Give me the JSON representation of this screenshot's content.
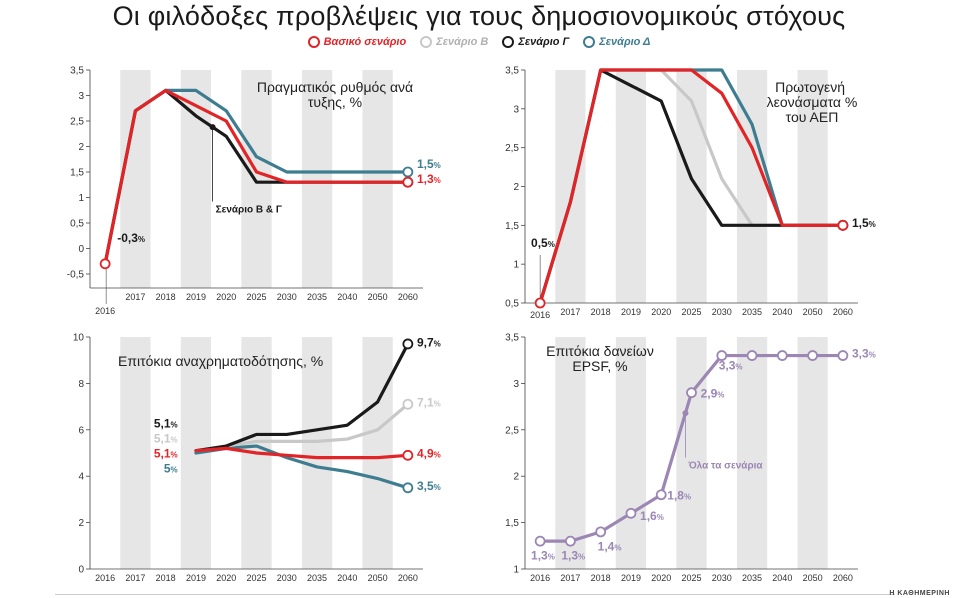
{
  "title": "Οι φιλόδοξες προβλέψεις για τους δημοσιονομικούς στόχους",
  "credit": "Η ΚΑΘΗΜΕΡΙΝΗ",
  "colors": {
    "base": "#e32427",
    "b": "#c8c8c8",
    "g": "#1a1a1a",
    "d": "#3e7c90",
    "all": "#9b86b4",
    "band": "#e6e6e6"
  },
  "legend": [
    {
      "name": "Βασικό σενάριο",
      "color": "#e32427"
    },
    {
      "name": "Σενάριο Β",
      "color": "#c8c8c8"
    },
    {
      "name": "Σενάριο Γ",
      "color": "#1a1a1a"
    },
    {
      "name": "Σενάριο Δ",
      "color": "#3e7c90"
    }
  ],
  "chart_data": [
    {
      "type": "line",
      "title": "Πραγματικός ρυθμός ανάπτυξης, %",
      "categories": [
        "2016",
        "2017",
        "2018",
        "2019",
        "2020",
        "2025",
        "2030",
        "2035",
        "2040",
        "2050",
        "2060"
      ],
      "ylim": [
        -0.5,
        3.5
      ],
      "yticks": [
        "-0,5",
        "0",
        "0,5",
        "1",
        "1,5",
        "2",
        "2,5",
        "3",
        "3,5"
      ],
      "series": [
        {
          "name": "Σενάριο Δ",
          "values": [
            -0.3,
            2.7,
            3.1,
            3.1,
            2.7,
            1.8,
            1.5,
            1.5,
            1.5,
            1.5,
            1.5
          ]
        },
        {
          "name": "Σενάριο Γ",
          "values": [
            -0.3,
            2.7,
            3.1,
            2.6,
            2.2,
            1.3,
            1.3,
            1.3,
            1.3,
            1.3,
            1.3
          ]
        },
        {
          "name": "Βασικό σενάριο",
          "values": [
            -0.3,
            2.7,
            3.1,
            2.8,
            2.5,
            1.5,
            1.3,
            1.3,
            1.3,
            1.3,
            1.3
          ]
        }
      ],
      "labels": [
        {
          "text": "-0,3",
          "unit": "%",
          "x": 0.4,
          "y": 0.13,
          "color": "#1a1a1a"
        },
        {
          "text": "1,5",
          "unit": "%",
          "x": 10.3,
          "y": 1.58,
          "color": "#3e7c90"
        },
        {
          "text": "1,3",
          "unit": "%",
          "x": 10.3,
          "y": 1.28,
          "color": "#e32427"
        }
      ],
      "annotation": {
        "text": "Σενάριο Β & Γ",
        "x": 3.55,
        "y": 2.38,
        "ty": 0.92
      }
    },
    {
      "type": "line",
      "title": "Πρωτογενή πλεονάσματα % του ΑΕΠ",
      "categories": [
        "2016",
        "2017",
        "2018",
        "2019",
        "2020",
        "2025",
        "2030",
        "2035",
        "2040",
        "2050",
        "2060"
      ],
      "ylim": [
        0.5,
        3.5
      ],
      "yticks": [
        "0,5",
        "1",
        "1,5",
        "2",
        "2,5",
        "3",
        "3,5"
      ],
      "series": [
        {
          "name": "Σενάριο Β",
          "values": [
            0.5,
            1.8,
            3.5,
            3.5,
            3.5,
            3.1,
            2.1,
            1.5,
            1.5,
            1.5,
            1.5
          ]
        },
        {
          "name": "Σενάριο Γ",
          "values": [
            0.5,
            1.8,
            3.5,
            3.3,
            3.1,
            2.1,
            1.5,
            1.5,
            1.5,
            1.5,
            1.5
          ]
        },
        {
          "name": "Σενάριο Δ",
          "values": [
            0.5,
            1.8,
            3.5,
            3.5,
            3.5,
            3.5,
            3.5,
            2.8,
            1.5,
            1.5,
            1.5
          ]
        },
        {
          "name": "Βασικό σενάριο",
          "values": [
            0.5,
            1.8,
            3.5,
            3.5,
            3.5,
            3.5,
            3.2,
            2.5,
            1.5,
            1.5,
            1.5
          ]
        }
      ],
      "labels": [
        {
          "text": "0,5",
          "unit": "%",
          "x": -0.3,
          "y": 1.22,
          "color": "#1a1a1a"
        },
        {
          "text": "1,5",
          "unit": "%",
          "x": 10.3,
          "y": 1.48,
          "color": "#1a1a1a"
        }
      ]
    },
    {
      "type": "line",
      "title": "Επιτόκια αναχρηματοδότησης, %",
      "categories": [
        "2016",
        "2017",
        "2018",
        "2019",
        "2020",
        "2025",
        "2030",
        "2035",
        "2040",
        "2050",
        "2060"
      ],
      "ylim": [
        0,
        10
      ],
      "yticks": [
        "0",
        "2",
        "4",
        "6",
        "8",
        "10"
      ],
      "series": [
        {
          "name": "Σενάριο Δ",
          "values": [
            null,
            null,
            null,
            5.0,
            5.2,
            5.3,
            4.8,
            4.4,
            4.2,
            3.9,
            3.5
          ]
        },
        {
          "name": "Σενάριο Β",
          "values": [
            null,
            null,
            null,
            5.1,
            5.3,
            5.5,
            5.5,
            5.5,
            5.6,
            6.0,
            7.1
          ]
        },
        {
          "name": "Σενάριο Γ",
          "values": [
            null,
            null,
            null,
            5.1,
            5.3,
            5.8,
            5.8,
            6.0,
            6.2,
            7.2,
            9.7
          ]
        },
        {
          "name": "Βασικό σενάριο",
          "values": [
            null,
            null,
            null,
            5.1,
            5.2,
            5.0,
            4.9,
            4.8,
            4.8,
            4.8,
            4.9
          ]
        }
      ],
      "labels": [
        {
          "text": "5,1",
          "unit": "%",
          "x": 1.75,
          "y": 6.1,
          "color": "#1a1a1a"
        },
        {
          "text": "5,1",
          "unit": "%",
          "x": 1.75,
          "y": 5.45,
          "color": "#c8c8c8"
        },
        {
          "text": "5,1",
          "unit": "%",
          "x": 1.75,
          "y": 4.8,
          "color": "#e32427"
        },
        {
          "text": "5",
          "unit": "%",
          "x": 2.0,
          "y": 4.15,
          "color": "#3e7c90"
        },
        {
          "text": "9,7",
          "unit": "%",
          "x": 10.3,
          "y": 9.6,
          "color": "#1a1a1a"
        },
        {
          "text": "7,1",
          "unit": "%",
          "x": 10.3,
          "y": 7.0,
          "color": "#c8c8c8"
        },
        {
          "text": "4,9",
          "unit": "%",
          "x": 10.3,
          "y": 4.8,
          "color": "#e32427"
        },
        {
          "text": "3,5",
          "unit": "%",
          "x": 10.3,
          "y": 3.4,
          "color": "#3e7c90"
        }
      ]
    },
    {
      "type": "line",
      "title": "Επιτόκια δανείων EPSF, %",
      "categories": [
        "2016",
        "2017",
        "2018",
        "2019",
        "2020",
        "2025",
        "2030",
        "2035",
        "2040",
        "2050",
        "2060"
      ],
      "ylim": [
        1,
        3.5
      ],
      "yticks": [
        "1",
        "1,5",
        "2",
        "2,5",
        "3",
        "3,5"
      ],
      "series": [
        {
          "name": "Όλα τα σενάρια",
          "values": [
            1.3,
            1.3,
            1.4,
            1.6,
            1.8,
            2.9,
            3.3,
            3.3,
            3.3,
            3.3,
            3.3
          ]
        }
      ],
      "labels": [
        {
          "text": "1,3",
          "unit": "%",
          "x": -0.3,
          "y": 1.1,
          "color": "#9b86b4"
        },
        {
          "text": "1,3",
          "unit": "%",
          "x": 0.7,
          "y": 1.1,
          "color": "#9b86b4"
        },
        {
          "text": "1,4",
          "unit": "%",
          "x": 1.9,
          "y": 1.2,
          "color": "#9b86b4"
        },
        {
          "text": "1,6",
          "unit": "%",
          "x": 3.3,
          "y": 1.53,
          "color": "#9b86b4"
        },
        {
          "text": "1,8",
          "unit": "%",
          "x": 4.2,
          "y": 1.75,
          "color": "#9b86b4"
        },
        {
          "text": "2,9",
          "unit": "%",
          "x": 5.3,
          "y": 2.85,
          "color": "#9b86b4"
        },
        {
          "text": "3,3",
          "unit": "%",
          "x": 5.9,
          "y": 3.15,
          "color": "#9b86b4"
        },
        {
          "text": "3,3",
          "unit": "%",
          "x": 10.3,
          "y": 3.28,
          "color": "#9b86b4"
        }
      ],
      "annotation": {
        "text": "Όλα τα σενάρια",
        "x": 4.8,
        "y": 2.68,
        "ty": 2.2
      }
    }
  ]
}
